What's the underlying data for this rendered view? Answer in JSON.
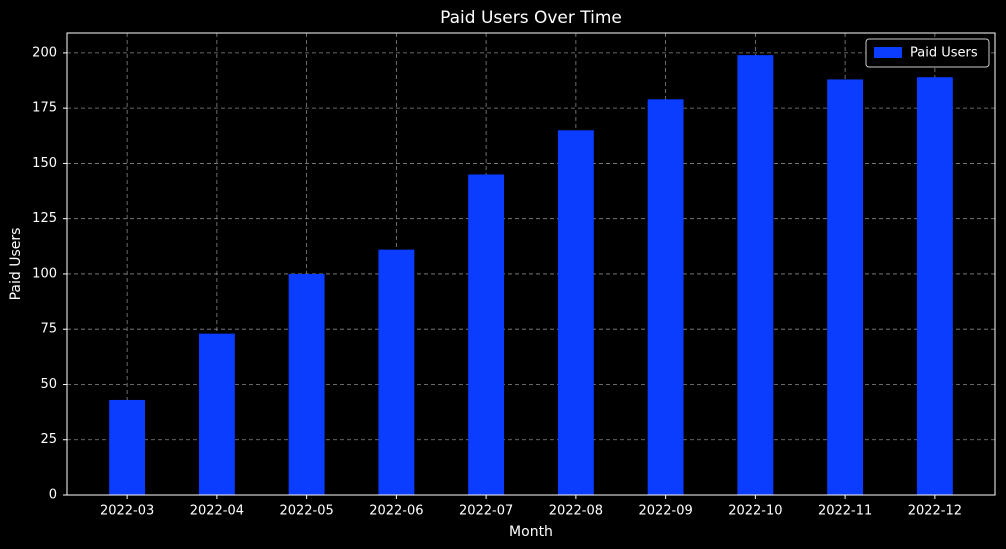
{
  "chart_data": {
    "type": "bar",
    "title": "Paid Users Over Time",
    "x_label": "Month",
    "y_label": "Paid Users",
    "categories": [
      "2022-03",
      "2022-04",
      "2022-05",
      "2022-06",
      "2022-07",
      "2022-08",
      "2022-09",
      "2022-10",
      "2022-11",
      "2022-12"
    ],
    "series": [
      {
        "name": "Paid Users",
        "color": "#0a3dff",
        "values": [
          43,
          73,
          100,
          111,
          145,
          165,
          179,
          199,
          188,
          189
        ]
      }
    ],
    "ylim": [
      0,
      209
    ],
    "yticks": [
      0,
      25,
      50,
      75,
      100,
      125,
      150,
      175,
      200
    ],
    "grid": true,
    "legend": "upper-right"
  }
}
